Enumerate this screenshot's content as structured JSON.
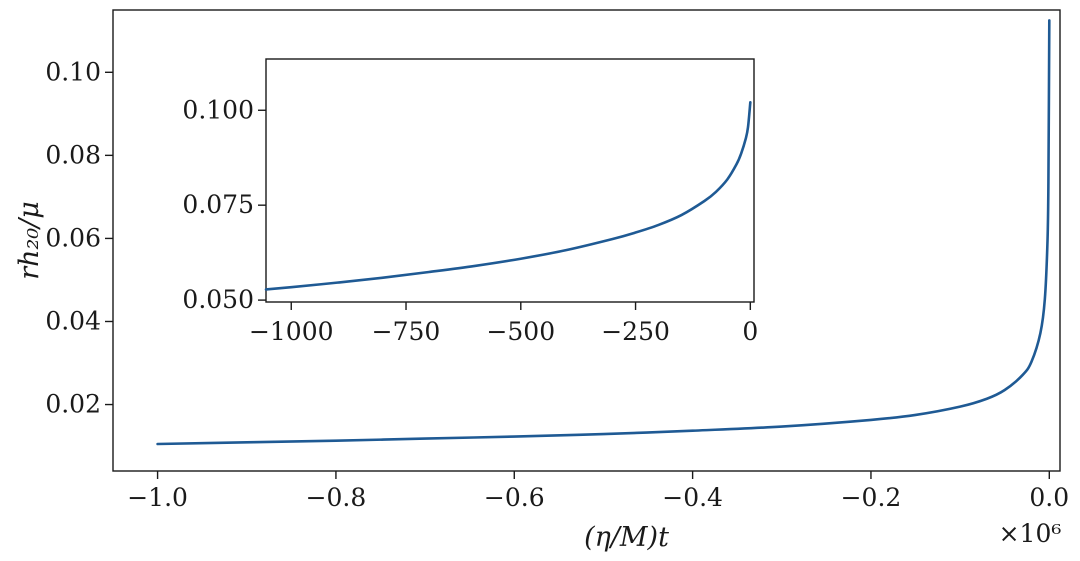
{
  "chart_data": [
    {
      "type": "line",
      "panel": "main",
      "xlabel": "(η/M)t",
      "ylabel": "rh₂₀/μ",
      "x_multiplier": "×10⁶",
      "xlim": [
        -1.05,
        0.012
      ],
      "ylim": [
        0.004,
        0.115
      ],
      "x_ticks": [
        -1.0,
        -0.8,
        -0.6,
        -0.4,
        -0.2,
        0.0
      ],
      "x_tick_labels": [
        "−1.0",
        "−0.8",
        "−0.6",
        "−0.4",
        "−0.2",
        "0.0"
      ],
      "y_ticks": [
        0.02,
        0.04,
        0.06,
        0.08,
        0.1
      ],
      "y_tick_labels": [
        "0.02",
        "0.04",
        "0.06",
        "0.08",
        "0.10"
      ],
      "grid": false,
      "color": "#1f5a94",
      "series": [
        {
          "x": [
            -1.0,
            -0.9,
            -0.8,
            -0.7,
            -0.6,
            -0.5,
            -0.4,
            -0.3,
            -0.2,
            -0.15,
            -0.1,
            -0.07,
            -0.05,
            -0.03,
            -0.02,
            -0.01,
            -0.005,
            -0.002,
            -0.001,
            0.0
          ],
          "y": [
            0.0105,
            0.0109,
            0.0113,
            0.0118,
            0.0123,
            0.0129,
            0.0137,
            0.0147,
            0.0163,
            0.0175,
            0.0195,
            0.0214,
            0.0235,
            0.0271,
            0.0303,
            0.0372,
            0.0454,
            0.0595,
            0.0734,
            0.1125
          ]
        }
      ]
    },
    {
      "type": "line",
      "panel": "inset",
      "xlim": [
        -1055,
        8
      ],
      "ylim": [
        0.0495,
        0.1135
      ],
      "x_ticks": [
        -1000,
        -750,
        -500,
        -250,
        0
      ],
      "x_tick_labels": [
        "−1000",
        "−750",
        "−500",
        "−250",
        "0"
      ],
      "y_ticks": [
        0.05,
        0.075,
        0.1
      ],
      "y_tick_labels": [
        "0.050",
        "0.075",
        "0.100"
      ],
      "grid": false,
      "color": "#1f5a94",
      "series": [
        {
          "x": [
            -1055,
            -1000,
            -900,
            -800,
            -700,
            -600,
            -500,
            -400,
            -300,
            -250,
            -200,
            -150,
            -100,
            -75,
            -50,
            -30,
            -20,
            -10,
            -5,
            0
          ],
          "y": [
            0.0528,
            0.0534,
            0.0546,
            0.0559,
            0.0574,
            0.059,
            0.0609,
            0.0632,
            0.0661,
            0.0678,
            0.0698,
            0.0724,
            0.0761,
            0.0785,
            0.0818,
            0.0858,
            0.0886,
            0.0925,
            0.0956,
            0.1021
          ]
        }
      ]
    }
  ]
}
